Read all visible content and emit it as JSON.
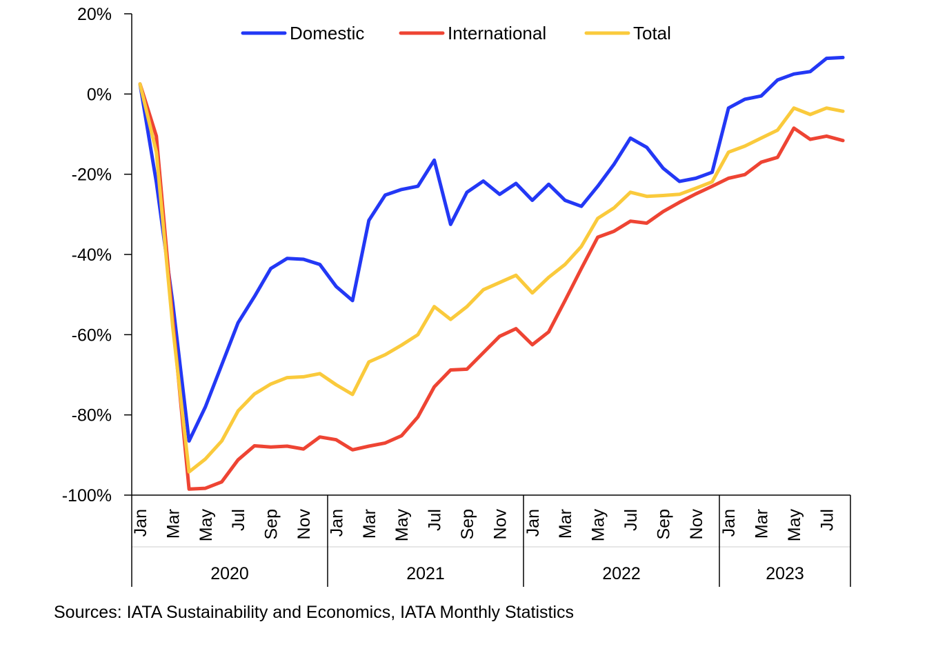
{
  "chart_data": {
    "type": "line",
    "title": "",
    "xlabel": "",
    "ylabel": "",
    "ylim": [
      -100,
      20
    ],
    "y_ticks": [
      20,
      0,
      -20,
      -40,
      -60,
      -80,
      -100
    ],
    "y_tick_labels": [
      "20%",
      "0%",
      "-20%",
      "-40%",
      "-60%",
      "-80%",
      "-100%"
    ],
    "grid": false,
    "legend_position": "top",
    "month_tick_labels": [
      "Jan",
      "Mar",
      "May",
      "Jul",
      "Sep",
      "Nov"
    ],
    "month_tick_labels_2023": [
      "Jan",
      "Mar",
      "May",
      "Jul"
    ],
    "years": [
      "2020",
      "2021",
      "2022",
      "2023"
    ],
    "x": [
      "2020-01",
      "2020-02",
      "2020-03",
      "2020-04",
      "2020-05",
      "2020-06",
      "2020-07",
      "2020-08",
      "2020-09",
      "2020-10",
      "2020-11",
      "2020-12",
      "2021-01",
      "2021-02",
      "2021-03",
      "2021-04",
      "2021-05",
      "2021-06",
      "2021-07",
      "2021-08",
      "2021-09",
      "2021-10",
      "2021-11",
      "2021-12",
      "2022-01",
      "2022-02",
      "2022-03",
      "2022-04",
      "2022-05",
      "2022-06",
      "2022-07",
      "2022-08",
      "2022-09",
      "2022-10",
      "2022-11",
      "2022-12",
      "2023-01",
      "2023-02",
      "2023-03",
      "2023-04",
      "2023-05",
      "2023-06",
      "2023-07",
      "2023-08"
    ],
    "series": [
      {
        "name": "Domestic",
        "color": "#2338F5",
        "values": [
          2.5,
          -22,
          -52,
          -86.5,
          -78,
          -67.5,
          -57,
          -50.5,
          -43.5,
          -41,
          -41.2,
          -42.5,
          -48,
          -51.5,
          -31.5,
          -25.2,
          -23.8,
          -23,
          -16.5,
          -32.5,
          -24.5,
          -21.7,
          -25,
          -22.3,
          -26.5,
          -22.5,
          -26.5,
          -28,
          -23,
          -17.5,
          -11,
          -13.3,
          -18.5,
          -21.8,
          -21,
          -19.5,
          -3.5,
          -1.3,
          -0.5,
          3.5,
          5,
          5.6,
          8.9,
          9.1
        ]
      },
      {
        "name": "International",
        "color": "#EE4433",
        "values": [
          2.5,
          -10.5,
          -56,
          -98.5,
          -98.3,
          -96.7,
          -91.2,
          -87.7,
          -88,
          -87.8,
          -88.5,
          -85.5,
          -86.2,
          -88.7,
          -87.8,
          -87,
          -85.2,
          -80.5,
          -73,
          -68.8,
          -68.6,
          -64.5,
          -60.4,
          -58.5,
          -62.5,
          -59.3,
          -51.5,
          -43.5,
          -35.7,
          -34.2,
          -31.7,
          -32.2,
          -29.3,
          -27,
          -24.9,
          -23,
          -21,
          -20.1,
          -17,
          -15.8,
          -8.5,
          -11.3,
          -10.5,
          -11.6
        ]
      },
      {
        "name": "Total",
        "color": "#FACA3C",
        "values": [
          2.5,
          -14.5,
          -58,
          -94.2,
          -91,
          -86.5,
          -79,
          -74.8,
          -72.3,
          -70.7,
          -70.5,
          -69.7,
          -72.5,
          -74.9,
          -66.8,
          -65,
          -62.6,
          -60,
          -53,
          -56.2,
          -53,
          -48.8,
          -47,
          -45.2,
          -49.6,
          -45.7,
          -42.5,
          -38,
          -31,
          -28.4,
          -24.5,
          -25.5,
          -25.3,
          -25,
          -23.5,
          -21.9,
          -14.5,
          -13,
          -11,
          -9,
          -3.5,
          -5.1,
          -3.5,
          -4.3
        ]
      }
    ],
    "source": "Sources: IATA Sustainability and Economics, IATA Monthly Statistics"
  }
}
